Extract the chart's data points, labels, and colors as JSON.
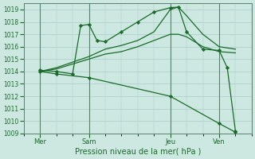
{
  "bg_color": "#cce8e0",
  "grid_color": "#aacccc",
  "line_color": "#1a6b2a",
  "marker_color": "#1a6b2a",
  "xlabel": "Pression niveau de la mer( hPa )",
  "ylim": [
    1009,
    1019.5
  ],
  "ytick_min": 1009,
  "ytick_max": 1019,
  "xlabel_fontsize": 7,
  "ylabel_fontsize": 5.5,
  "xlabel_color": "#1a6b2a",
  "xtick_labels": [
    "Mer",
    "Sam",
    "Jeu",
    "Ven"
  ],
  "xtick_positions": [
    1,
    4,
    9,
    12
  ],
  "xlim": [
    0,
    14
  ],
  "series": [
    {
      "x": [
        1,
        2,
        4,
        5,
        6,
        7,
        8,
        9,
        9.5,
        10,
        11,
        12,
        13
      ],
      "y": [
        1014.0,
        1014.3,
        1015.2,
        1015.8,
        1016.1,
        1016.5,
        1017.2,
        1019.0,
        1019.2,
        1018.5,
        1017.0,
        1016.0,
        1015.8
      ],
      "markers": false
    },
    {
      "x": [
        1,
        2,
        4,
        5,
        6,
        7,
        8,
        9,
        9.5,
        10,
        11,
        12,
        13
      ],
      "y": [
        1014.0,
        1014.2,
        1015.0,
        1015.4,
        1015.6,
        1016.0,
        1016.5,
        1017.0,
        1017.0,
        1016.8,
        1016.0,
        1015.6,
        1015.5
      ],
      "markers": false
    },
    {
      "x": [
        1,
        2,
        3,
        3.5,
        4,
        4.5,
        5,
        6,
        7,
        8,
        9,
        9.5,
        10,
        11,
        12,
        12.5,
        13
      ],
      "y": [
        1014.1,
        1014.0,
        1013.8,
        1017.7,
        1017.8,
        1016.5,
        1016.4,
        1017.2,
        1018.0,
        1018.8,
        1019.15,
        1019.2,
        1017.2,
        1015.8,
        1015.7,
        1014.3,
        1009.2
      ],
      "markers": true
    },
    {
      "x": [
        1,
        2,
        4,
        9,
        12,
        13
      ],
      "y": [
        1014.0,
        1013.8,
        1013.5,
        1012.0,
        1009.8,
        1009.1
      ],
      "markers": true
    }
  ]
}
